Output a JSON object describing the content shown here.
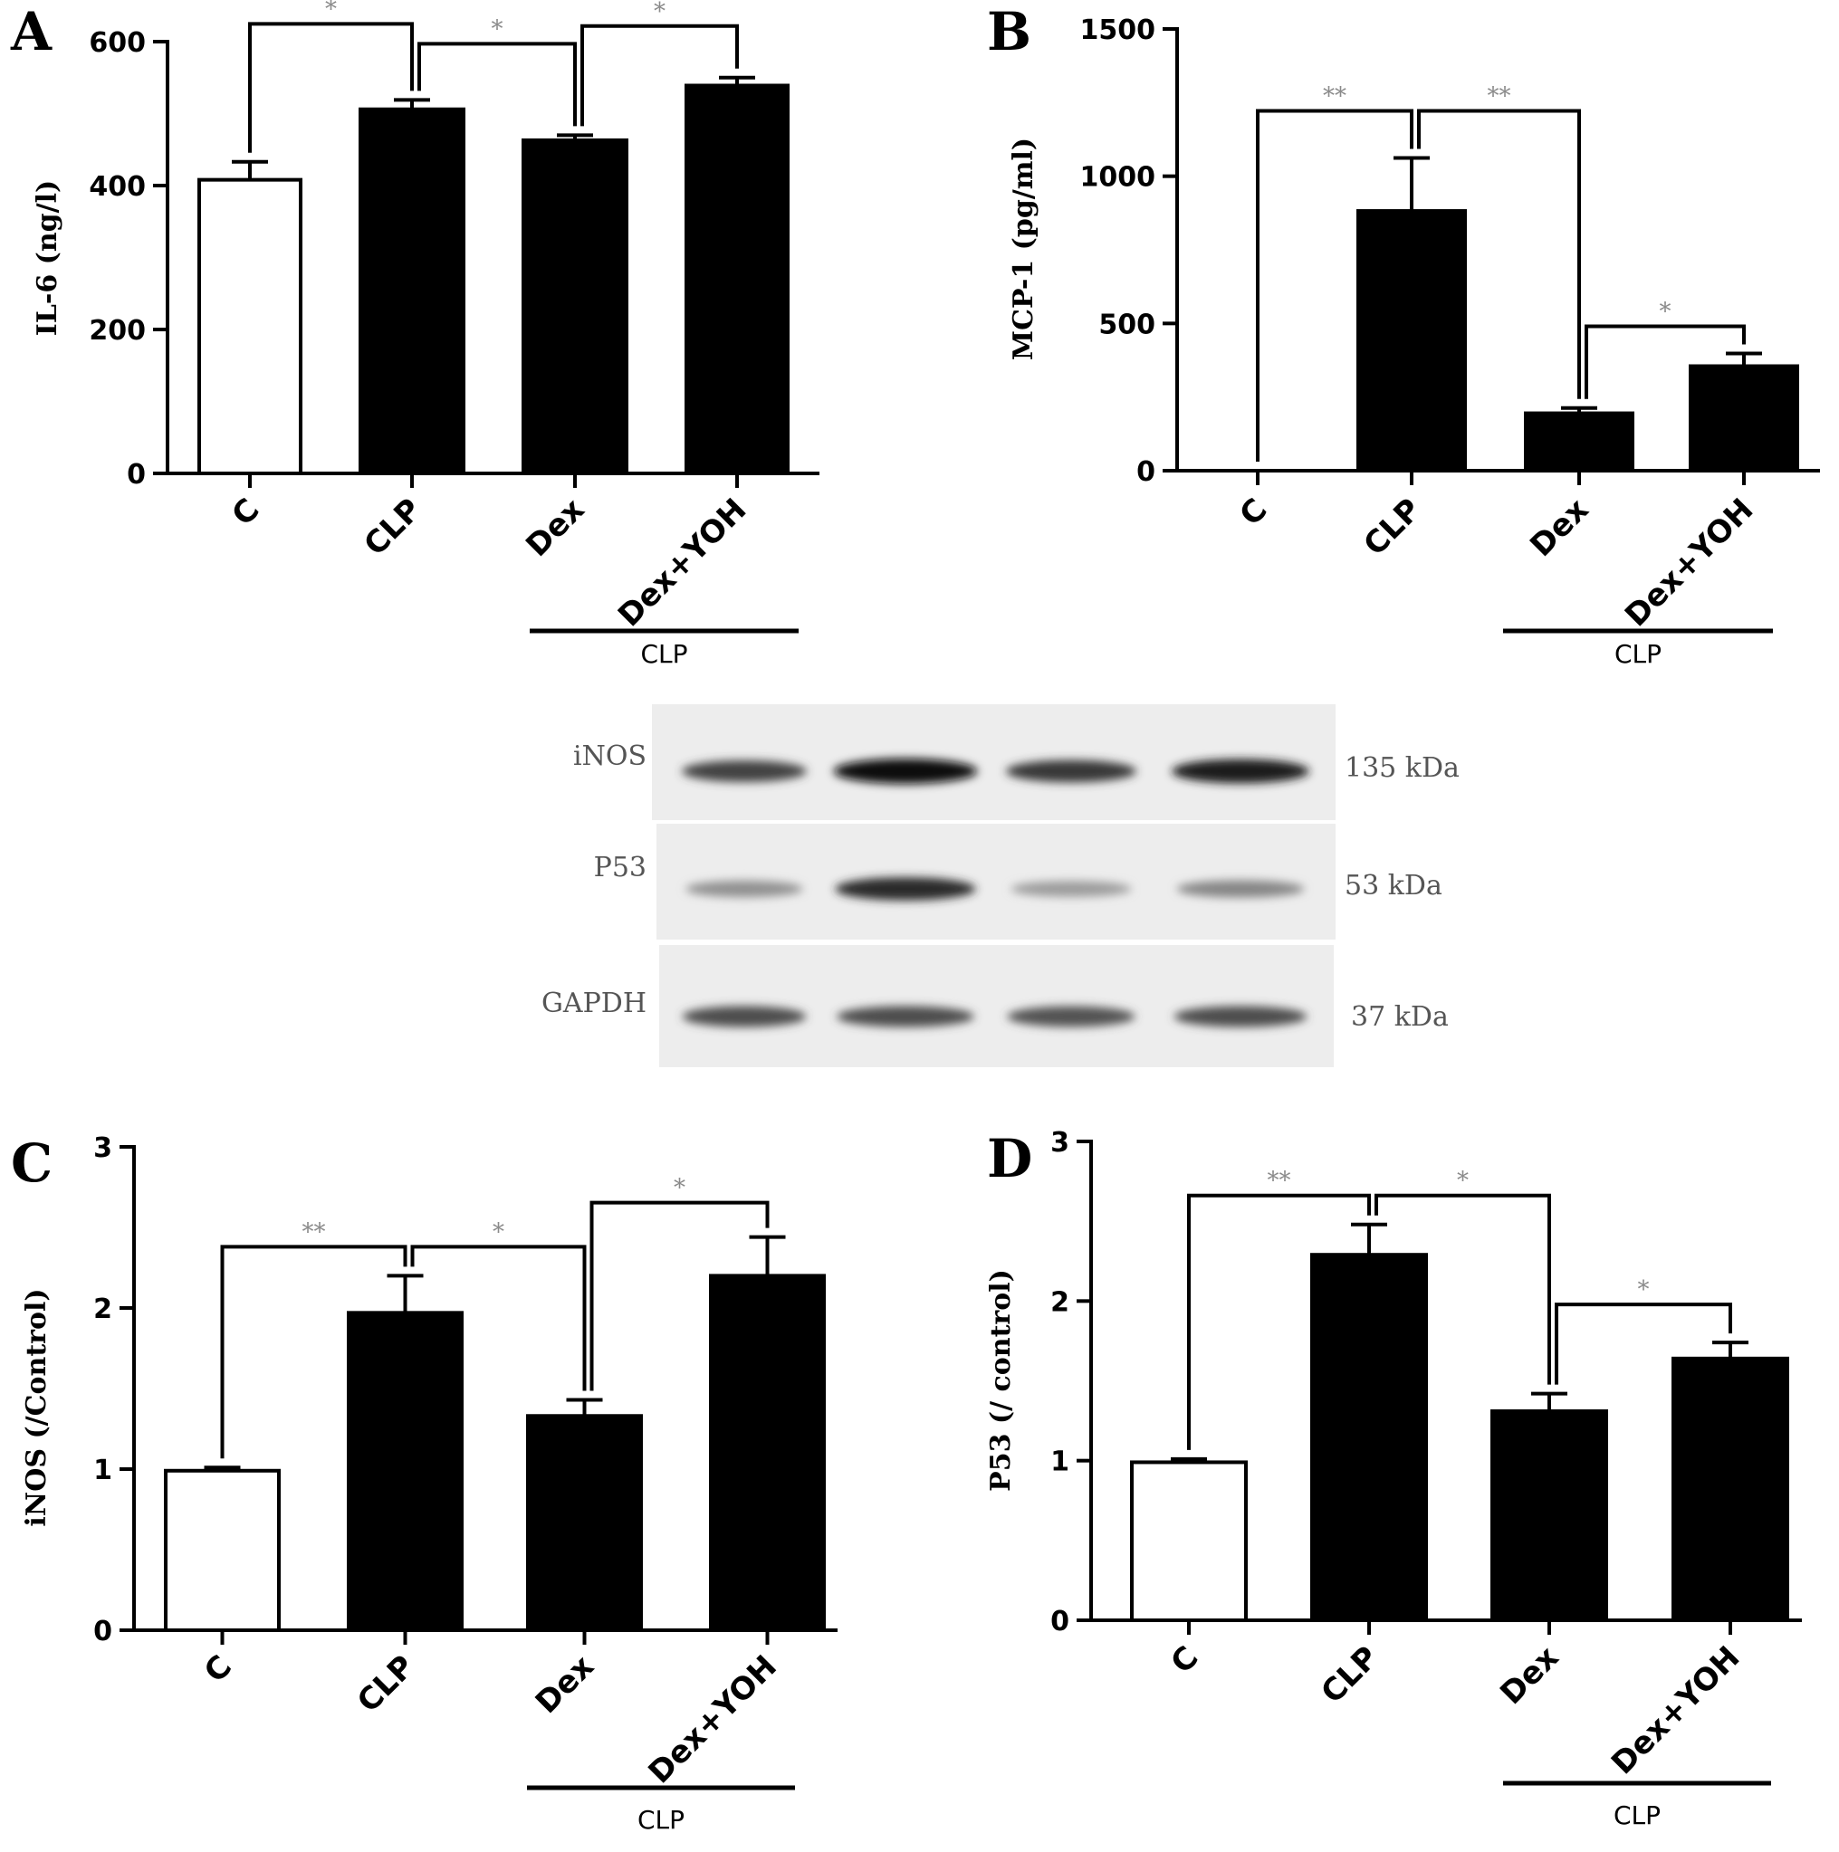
{
  "chart_data": [
    {
      "panel": "A",
      "type": "bar",
      "ylabel": "IL-6 (ng/l)",
      "ylim": [
        0,
        600
      ],
      "yticks": [
        "0",
        "200",
        "400",
        "600"
      ],
      "categories": [
        "C",
        "CLP",
        "Dex",
        "Dex+YOH"
      ],
      "values": [
        408,
        506,
        463,
        539
      ],
      "errors": [
        25,
        13,
        7,
        11
      ],
      "fills": [
        "#ffffff",
        "#000000",
        "#000000",
        "#000000"
      ],
      "group_label": "CLP",
      "comparisons": [
        {
          "from": 0,
          "to": 1,
          "label": "*"
        },
        {
          "from": 1,
          "to": 2,
          "label": "*"
        },
        {
          "from": 2,
          "to": 3,
          "label": "*"
        }
      ]
    },
    {
      "panel": "B",
      "type": "bar",
      "ylabel": "MCP-1 (pg/ml)",
      "ylim": [
        0,
        1500
      ],
      "yticks": [
        "0",
        "500",
        "1000",
        "1500"
      ],
      "categories": [
        "C",
        "CLP",
        "Dex",
        "Dex+YOH"
      ],
      "values": [
        0,
        882,
        195,
        355
      ],
      "errors": [
        0,
        180,
        18,
        43
      ],
      "fills": [
        "#ffffff",
        "#000000",
        "#000000",
        "#000000"
      ],
      "group_label": "CLP",
      "comparisons": [
        {
          "from": 0,
          "to": 1,
          "label": "**"
        },
        {
          "from": 1,
          "to": 2,
          "label": "**"
        },
        {
          "from": 2,
          "to": 3,
          "label": "*"
        }
      ]
    },
    {
      "panel": "C",
      "type": "bar",
      "ylabel": "iNOS (/Control)",
      "ylim": [
        0,
        3
      ],
      "yticks": [
        "0",
        "1",
        "2",
        "3"
      ],
      "categories": [
        "C",
        "CLP",
        "Dex",
        "Dex+YOH"
      ],
      "values": [
        0.99,
        1.97,
        1.33,
        2.2
      ],
      "errors": [
        0.02,
        0.23,
        0.1,
        0.24
      ],
      "fills": [
        "#ffffff",
        "#000000",
        "#000000",
        "#000000"
      ],
      "group_label": "CLP",
      "comparisons": [
        {
          "from": 0,
          "to": 1,
          "label": "**"
        },
        {
          "from": 1,
          "to": 2,
          "label": "*"
        },
        {
          "from": 2,
          "to": 3,
          "label": "*"
        }
      ]
    },
    {
      "panel": "D",
      "type": "bar",
      "ylabel": "P53 (/ control)",
      "ylim": [
        0,
        3
      ],
      "yticks": [
        "0",
        "1",
        "2",
        "3"
      ],
      "categories": [
        "C",
        "CLP",
        "Dex",
        "Dex+YOH"
      ],
      "values": [
        0.99,
        2.29,
        1.31,
        1.64
      ],
      "errors": [
        0.02,
        0.19,
        0.11,
        0.1
      ],
      "fills": [
        "#ffffff",
        "#000000",
        "#000000",
        "#000000"
      ],
      "group_label": "CLP",
      "comparisons": [
        {
          "from": 0,
          "to": 1,
          "label": "**"
        },
        {
          "from": 1,
          "to": 2,
          "label": "*"
        },
        {
          "from": 2,
          "to": 3,
          "label": "*"
        }
      ]
    }
  ],
  "western_blot": {
    "rows": [
      {
        "protein": "iNOS",
        "size": "135 kDa",
        "intensities": [
          0.75,
          1.0,
          0.8,
          0.92
        ]
      },
      {
        "protein": "P53",
        "size": "53 kDa",
        "intensities": [
          0.4,
          0.85,
          0.35,
          0.45
        ]
      },
      {
        "protein": "GAPDH",
        "size": "37 kDa",
        "intensities": [
          0.7,
          0.7,
          0.68,
          0.7
        ]
      }
    ]
  }
}
